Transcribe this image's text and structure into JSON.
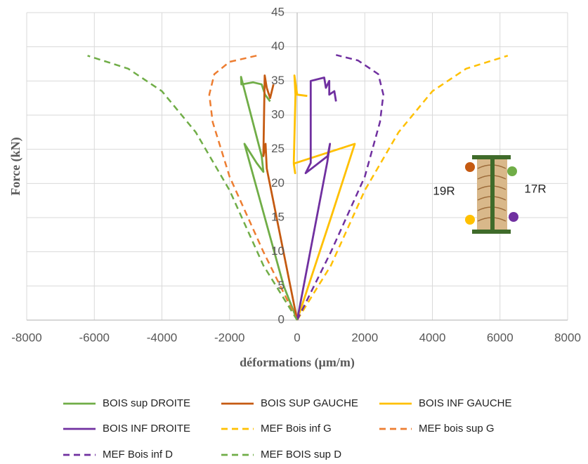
{
  "chart_data": {
    "type": "line",
    "xlabel": "déformations (µm/m)",
    "ylabel": "Force (kN)",
    "xlim": [
      -8000,
      8000
    ],
    "xticks": [
      -8000,
      -6000,
      -4000,
      -2000,
      0,
      2000,
      4000,
      6000,
      8000
    ],
    "ylim": [
      0,
      45
    ],
    "yticks": [
      0,
      5,
      10,
      15,
      20,
      25,
      30,
      35,
      40,
      45
    ],
    "grid": true,
    "legend": "bottom",
    "annotations": [
      "19R",
      "17R"
    ],
    "series": [
      {
        "name": "BOIS sup DROITE",
        "color": "#70ad47",
        "dash": false,
        "x": [
          0,
          -400,
          -1558,
          -1200,
          -1000,
          -1050,
          -1660,
          -1650,
          -1300,
          -1050,
          -950,
          -800
        ],
        "values": [
          0,
          5,
          25.8,
          23,
          21.7,
          24,
          35.6,
          34.5,
          34.8,
          34.5,
          33,
          32
        ]
      },
      {
        "name": "BOIS SUP GAUCHE",
        "color": "#c55a11",
        "dash": false,
        "x": [
          0,
          -900,
          -935,
          -1000,
          -960,
          -900,
          -800,
          -700
        ],
        "values": [
          0,
          22.2,
          25.8,
          24,
          35.8,
          34,
          32.5,
          34.5
        ]
      },
      {
        "name": "BOIS INF GAUCHE",
        "color": "#ffc000",
        "dash": false,
        "x": [
          0,
          1000,
          1704,
          -100,
          -60,
          -100,
          -50,
          -80,
          0,
          300
        ],
        "values": [
          0,
          15,
          25.8,
          22.9,
          21.5,
          23,
          33,
          35.8,
          33,
          32.8
        ]
      },
      {
        "name": "BOIS INF DROITE",
        "color": "#7030a0",
        "dash": false,
        "x": [
          0,
          893,
          970,
          900,
          250,
          400,
          400,
          800,
          850,
          950,
          950,
          1100,
          1150
        ],
        "values": [
          0,
          23.2,
          25.8,
          24,
          21.5,
          23,
          35,
          35.5,
          34,
          35,
          33,
          33.5,
          32
        ]
      },
      {
        "name": "MEF Bois inf G",
        "color": "#ffc000",
        "dash": true,
        "x": [
          0,
          1000,
          2000,
          3000,
          4000,
          5000,
          6230
        ],
        "values": [
          0,
          8,
          19,
          27.5,
          33.5,
          36.8,
          38.7
        ]
      },
      {
        "name": "MEF bois sup G",
        "color": "#ed7d31",
        "dash": true,
        "x": [
          0,
          -1000,
          -2000,
          -2500,
          -2600,
          -2450,
          -2000,
          -1200
        ],
        "values": [
          0,
          10,
          21,
          29,
          33,
          36,
          37.8,
          38.7
        ]
      },
      {
        "name": "MEF Bois inf D",
        "color": "#7030a0",
        "dash": true,
        "x": [
          0,
          1000,
          2000,
          2450,
          2550,
          2400,
          1800,
          1150
        ],
        "values": [
          0,
          10,
          21,
          29,
          33,
          36,
          38,
          38.8
        ]
      },
      {
        "name": "MEF BOIS sup D",
        "color": "#70ad47",
        "dash": true,
        "x": [
          0,
          -1000,
          -2000,
          -3000,
          -4000,
          -5000,
          -6200
        ],
        "values": [
          0,
          8,
          19,
          27.5,
          33.5,
          36.8,
          38.7
        ]
      }
    ]
  }
}
